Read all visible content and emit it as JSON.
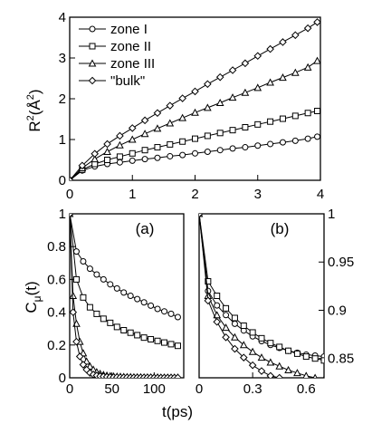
{
  "chart_data": [
    {
      "type": "line",
      "panel": "top",
      "xlim": [
        0,
        4
      ],
      "ylim": [
        0,
        4
      ],
      "xticks": [
        "0",
        "1",
        "2",
        "3",
        "4"
      ],
      "yticks": [
        "0",
        "1",
        "2",
        "3",
        "4"
      ],
      "ylabel_main": "R",
      "ylabel_sup": "2",
      "ylabel_unit": "(Å",
      "ylabel_unit_sup": "2",
      "ylabel_close": ")",
      "legend_position": "top-left",
      "series": [
        {
          "name": "zone I",
          "marker": "circle",
          "x": [
            0,
            0.2,
            0.4,
            0.6,
            0.8,
            1.0,
            1.2,
            1.4,
            1.6,
            1.8,
            2.0,
            2.2,
            2.4,
            2.6,
            2.8,
            3.0,
            3.2,
            3.4,
            3.6,
            3.8,
            3.95
          ],
          "y": [
            0,
            0.24,
            0.34,
            0.4,
            0.44,
            0.48,
            0.52,
            0.55,
            0.59,
            0.62,
            0.66,
            0.7,
            0.74,
            0.78,
            0.81,
            0.85,
            0.89,
            0.93,
            0.97,
            1.02,
            1.07
          ]
        },
        {
          "name": "zone II",
          "marker": "square",
          "x": [
            0,
            0.2,
            0.4,
            0.6,
            0.8,
            1.0,
            1.2,
            1.4,
            1.6,
            1.8,
            2.0,
            2.2,
            2.4,
            2.6,
            2.8,
            3.0,
            3.2,
            3.4,
            3.6,
            3.8,
            3.95
          ],
          "y": [
            0,
            0.26,
            0.4,
            0.5,
            0.58,
            0.66,
            0.74,
            0.81,
            0.88,
            0.95,
            1.02,
            1.09,
            1.16,
            1.23,
            1.3,
            1.37,
            1.44,
            1.51,
            1.58,
            1.65,
            1.7
          ]
        },
        {
          "name": "zone III",
          "marker": "triangle",
          "x": [
            0,
            0.2,
            0.4,
            0.6,
            0.8,
            1.0,
            1.2,
            1.4,
            1.6,
            1.8,
            2.0,
            2.2,
            2.4,
            2.6,
            2.8,
            3.0,
            3.2,
            3.4,
            3.6,
            3.8,
            3.95
          ],
          "y": [
            0,
            0.3,
            0.52,
            0.7,
            0.86,
            1.0,
            1.14,
            1.27,
            1.4,
            1.53,
            1.66,
            1.78,
            1.9,
            2.03,
            2.15,
            2.27,
            2.4,
            2.52,
            2.64,
            2.77,
            2.93
          ]
        },
        {
          "name": "\"bulk\"",
          "marker": "diamond",
          "x": [
            0,
            0.2,
            0.4,
            0.6,
            0.8,
            1.0,
            1.2,
            1.4,
            1.6,
            1.8,
            2.0,
            2.2,
            2.4,
            2.6,
            2.8,
            3.0,
            3.2,
            3.4,
            3.6,
            3.8,
            3.95
          ],
          "y": [
            0,
            0.36,
            0.65,
            0.89,
            1.09,
            1.28,
            1.47,
            1.65,
            1.83,
            2.01,
            2.18,
            2.36,
            2.53,
            2.7,
            2.87,
            3.05,
            3.22,
            3.39,
            3.56,
            3.73,
            3.88
          ]
        }
      ]
    },
    {
      "type": "line",
      "panel": "(a)",
      "label": "(a)",
      "xlim": [
        0,
        135
      ],
      "ylim": [
        0,
        1
      ],
      "xticks": [
        "0",
        "50",
        "100"
      ],
      "yticks": [
        "0",
        "0.2",
        "0.4",
        "0.6",
        "0.8",
        "1"
      ],
      "ylabel_main": "C",
      "ylabel_sub": "μ",
      "ylabel_tail": "(t)",
      "series": [
        {
          "name": "zone I",
          "marker": "circle",
          "x": [
            0,
            8,
            16,
            24,
            32,
            40,
            48,
            56,
            64,
            72,
            80,
            88,
            96,
            104,
            112,
            120,
            128
          ],
          "y": [
            1,
            0.77,
            0.71,
            0.665,
            0.63,
            0.6,
            0.57,
            0.545,
            0.52,
            0.5,
            0.48,
            0.46,
            0.44,
            0.42,
            0.405,
            0.39,
            0.37
          ]
        },
        {
          "name": "zone II",
          "marker": "square",
          "x": [
            0,
            8,
            16,
            24,
            32,
            40,
            48,
            56,
            64,
            72,
            80,
            88,
            96,
            104,
            112,
            120,
            128
          ],
          "y": [
            1,
            0.6,
            0.49,
            0.43,
            0.39,
            0.36,
            0.335,
            0.31,
            0.29,
            0.275,
            0.26,
            0.245,
            0.235,
            0.225,
            0.215,
            0.205,
            0.195
          ]
        },
        {
          "name": "zone III",
          "marker": "triangle",
          "x": [
            0,
            4,
            8,
            12,
            16,
            20,
            24,
            28,
            32,
            36,
            40,
            44,
            48,
            52,
            56,
            60,
            64,
            68,
            72,
            76,
            80,
            84,
            88,
            92,
            96,
            100,
            104,
            108,
            112,
            116,
            120,
            124,
            128
          ],
          "y": [
            1,
            0.5,
            0.33,
            0.22,
            0.15,
            0.1,
            0.07,
            0.05,
            0.035,
            0.025,
            0.018,
            0.014,
            0.011,
            0.009,
            0.008,
            0.007,
            0.006,
            0.005,
            0.005,
            0.004,
            0.004,
            0.004,
            0.003,
            0.003,
            0.003,
            0.003,
            0.003,
            0.002,
            0.002,
            0.002,
            0.002,
            0.002,
            0.002
          ]
        },
        {
          "name": "\"bulk\"",
          "marker": "diamond",
          "x": [
            0,
            4,
            8,
            12,
            16,
            20,
            24,
            28,
            32,
            36,
            40,
            44,
            48,
            52,
            56,
            60,
            64,
            68,
            72,
            76,
            80,
            84,
            88,
            92,
            96,
            100,
            104,
            108,
            112,
            116,
            120,
            124,
            128
          ],
          "y": [
            1,
            0.4,
            0.22,
            0.13,
            0.08,
            0.05,
            0.03,
            0.02,
            0.014,
            0.01,
            0.008,
            0.006,
            0.005,
            0.004,
            0.004,
            0.003,
            0.003,
            0.003,
            0.002,
            0.002,
            0.002,
            0.002,
            0.002,
            0.002,
            0.002,
            0.001,
            0.001,
            0.001,
            0.001,
            0.001,
            0.001,
            0.001,
            0.001
          ]
        }
      ]
    },
    {
      "type": "line",
      "panel": "(b)",
      "label": "(b)",
      "xlim": [
        0,
        0.7
      ],
      "ylim": [
        0.83,
        1.0
      ],
      "xticks": [
        "0",
        "0.3",
        "0.6"
      ],
      "yticks": [
        "0.85",
        "0.9",
        "0.95",
        "1"
      ],
      "series": [
        {
          "name": "zone I",
          "marker": "circle",
          "x": [
            0,
            0.05,
            0.1,
            0.15,
            0.2,
            0.25,
            0.3,
            0.35,
            0.4,
            0.45,
            0.5,
            0.55,
            0.6,
            0.65,
            0.7
          ],
          "y": [
            1,
            0.92,
            0.905,
            0.895,
            0.886,
            0.879,
            0.873,
            0.868,
            0.864,
            0.861,
            0.858,
            0.856,
            0.854,
            0.853,
            0.852
          ]
        },
        {
          "name": "zone II",
          "marker": "square",
          "x": [
            0,
            0.05,
            0.1,
            0.15,
            0.2,
            0.25,
            0.3,
            0.35,
            0.4,
            0.45,
            0.5,
            0.55,
            0.6,
            0.65,
            0.7
          ],
          "y": [
            1,
            0.93,
            0.915,
            0.902,
            0.892,
            0.884,
            0.877,
            0.871,
            0.866,
            0.862,
            0.858,
            0.855,
            0.852,
            0.85,
            0.848
          ]
        },
        {
          "name": "zone III",
          "marker": "triangle",
          "x": [
            0,
            0.05,
            0.1,
            0.15,
            0.2,
            0.25,
            0.3,
            0.35,
            0.4,
            0.45,
            0.5,
            0.55,
            0.6,
            0.65,
            0.7
          ],
          "y": [
            1,
            0.915,
            0.895,
            0.882,
            0.872,
            0.864,
            0.857,
            0.851,
            0.846,
            0.842,
            0.838,
            0.835,
            0.832,
            0.83,
            0.828
          ]
        },
        {
          "name": "\"bulk\"",
          "marker": "diamond",
          "x": [
            0,
            0.05,
            0.1,
            0.15,
            0.2,
            0.25,
            0.3,
            0.35,
            0.4,
            0.45
          ],
          "y": [
            1,
            0.91,
            0.888,
            0.872,
            0.86,
            0.851,
            0.843,
            0.837,
            0.832,
            0.83
          ]
        }
      ]
    }
  ],
  "shared_xlabel": "t(ps)"
}
